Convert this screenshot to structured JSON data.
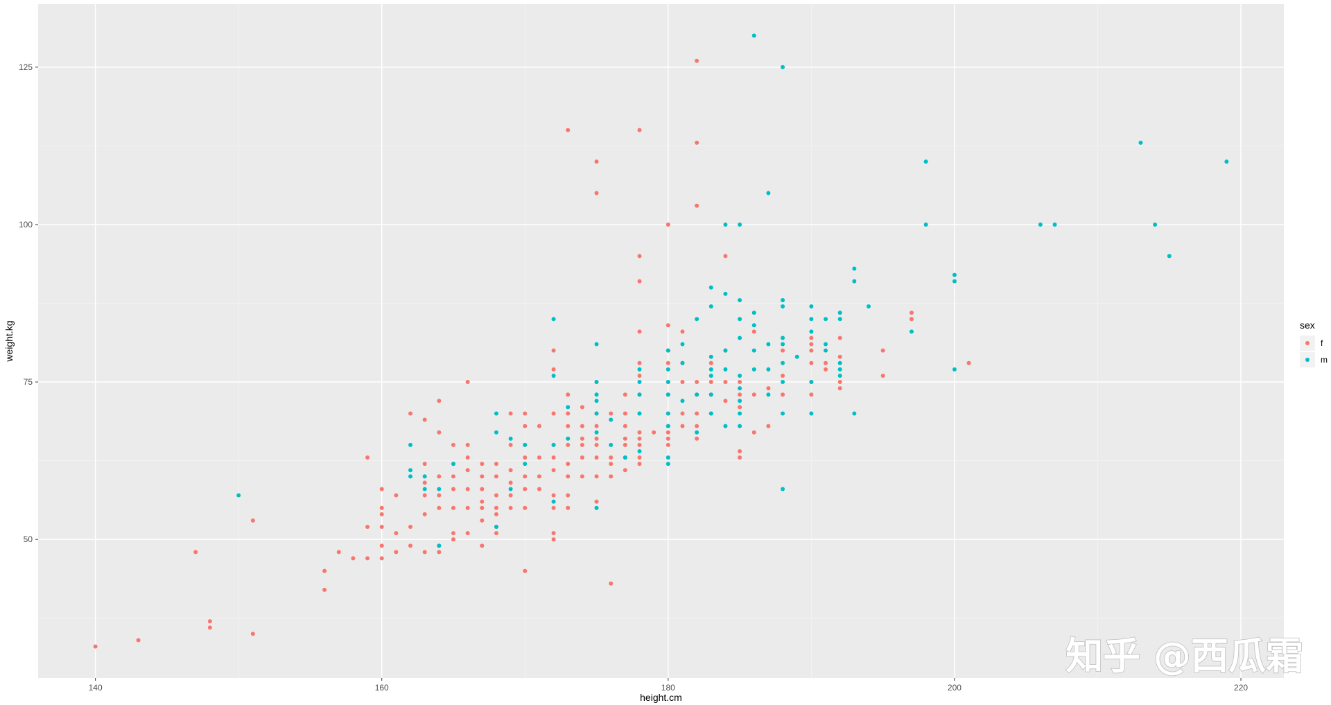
{
  "chart_data": {
    "type": "scatter",
    "xlabel": "height.cm",
    "ylabel": "weight.kg",
    "xlim": [
      136,
      223
    ],
    "ylim": [
      28,
      135
    ],
    "x_ticks": [
      140,
      160,
      180,
      200,
      220
    ],
    "y_ticks": [
      50,
      75,
      100,
      125
    ],
    "grid": true,
    "background_color": "#ebebeb",
    "legend": {
      "title": "sex",
      "placement": "right",
      "entries": [
        {
          "label": "f",
          "color": "#F8766D"
        },
        {
          "label": "m",
          "color": "#00BFC4"
        }
      ]
    },
    "series": [
      {
        "name": "f",
        "color": "#F8766D",
        "points": [
          [
            140,
            33
          ],
          [
            143,
            34
          ],
          [
            147,
            48
          ],
          [
            148,
            37
          ],
          [
            148,
            36
          ],
          [
            151,
            53
          ],
          [
            151,
            35
          ],
          [
            156,
            45
          ],
          [
            156,
            42
          ],
          [
            157,
            48
          ],
          [
            158,
            47
          ],
          [
            159,
            63
          ],
          [
            159,
            52
          ],
          [
            159,
            47
          ],
          [
            160,
            58
          ],
          [
            160,
            55
          ],
          [
            160,
            54
          ],
          [
            160,
            52
          ],
          [
            160,
            49
          ],
          [
            160,
            47
          ],
          [
            161,
            57
          ],
          [
            161,
            51
          ],
          [
            161,
            48
          ],
          [
            162,
            70
          ],
          [
            162,
            52
          ],
          [
            162,
            49
          ],
          [
            163,
            69
          ],
          [
            163,
            62
          ],
          [
            163,
            59
          ],
          [
            163,
            57
          ],
          [
            163,
            54
          ],
          [
            163,
            48
          ],
          [
            164,
            72
          ],
          [
            164,
            67
          ],
          [
            164,
            60
          ],
          [
            164,
            57
          ],
          [
            164,
            55
          ],
          [
            164,
            49
          ],
          [
            164,
            48
          ],
          [
            165,
            65
          ],
          [
            165,
            62
          ],
          [
            165,
            60
          ],
          [
            165,
            58
          ],
          [
            165,
            55
          ],
          [
            165,
            51
          ],
          [
            165,
            50
          ],
          [
            166,
            75
          ],
          [
            166,
            65
          ],
          [
            166,
            63
          ],
          [
            166,
            61
          ],
          [
            166,
            58
          ],
          [
            166,
            55
          ],
          [
            166,
            51
          ],
          [
            167,
            62
          ],
          [
            167,
            60
          ],
          [
            167,
            58
          ],
          [
            167,
            56
          ],
          [
            167,
            55
          ],
          [
            167,
            53
          ],
          [
            167,
            49
          ],
          [
            168,
            62
          ],
          [
            168,
            60
          ],
          [
            168,
            57
          ],
          [
            168,
            55
          ],
          [
            168,
            54
          ],
          [
            168,
            52
          ],
          [
            168,
            51
          ],
          [
            169,
            70
          ],
          [
            169,
            65
          ],
          [
            169,
            61
          ],
          [
            169,
            59
          ],
          [
            169,
            57
          ],
          [
            169,
            55
          ],
          [
            170,
            70
          ],
          [
            170,
            68
          ],
          [
            170,
            65
          ],
          [
            170,
            63
          ],
          [
            170,
            60
          ],
          [
            170,
            58
          ],
          [
            170,
            55
          ],
          [
            170,
            45
          ],
          [
            171,
            68
          ],
          [
            171,
            63
          ],
          [
            171,
            60
          ],
          [
            171,
            58
          ],
          [
            172,
            80
          ],
          [
            172,
            77
          ],
          [
            172,
            70
          ],
          [
            172,
            65
          ],
          [
            172,
            63
          ],
          [
            172,
            61
          ],
          [
            172,
            57
          ],
          [
            172,
            55
          ],
          [
            172,
            51
          ],
          [
            172,
            50
          ],
          [
            173,
            115
          ],
          [
            173,
            73
          ],
          [
            173,
            70
          ],
          [
            173,
            68
          ],
          [
            173,
            65
          ],
          [
            173,
            62
          ],
          [
            173,
            60
          ],
          [
            173,
            57
          ],
          [
            173,
            55
          ],
          [
            174,
            71
          ],
          [
            174,
            68
          ],
          [
            174,
            66
          ],
          [
            174,
            65
          ],
          [
            174,
            63
          ],
          [
            174,
            60
          ],
          [
            175,
            110
          ],
          [
            175,
            105
          ],
          [
            175,
            75
          ],
          [
            175,
            70
          ],
          [
            175,
            68
          ],
          [
            175,
            66
          ],
          [
            175,
            65
          ],
          [
            175,
            63
          ],
          [
            175,
            60
          ],
          [
            175,
            56
          ],
          [
            176,
            70
          ],
          [
            176,
            63
          ],
          [
            176,
            62
          ],
          [
            176,
            60
          ],
          [
            176,
            43
          ],
          [
            177,
            73
          ],
          [
            177,
            70
          ],
          [
            177,
            68
          ],
          [
            177,
            66
          ],
          [
            177,
            65
          ],
          [
            177,
            63
          ],
          [
            177,
            61
          ],
          [
            178,
            115
          ],
          [
            178,
            95
          ],
          [
            178,
            91
          ],
          [
            178,
            83
          ],
          [
            178,
            78
          ],
          [
            178,
            76
          ],
          [
            178,
            73
          ],
          [
            178,
            70
          ],
          [
            178,
            67
          ],
          [
            178,
            66
          ],
          [
            178,
            65
          ],
          [
            178,
            63
          ],
          [
            178,
            62
          ],
          [
            179,
            67
          ],
          [
            180,
            100
          ],
          [
            180,
            84
          ],
          [
            180,
            80
          ],
          [
            180,
            78
          ],
          [
            180,
            75
          ],
          [
            180,
            73
          ],
          [
            180,
            70
          ],
          [
            180,
            68
          ],
          [
            180,
            67
          ],
          [
            180,
            66
          ],
          [
            180,
            65
          ],
          [
            181,
            83
          ],
          [
            181,
            78
          ],
          [
            181,
            75
          ],
          [
            181,
            70
          ],
          [
            181,
            68
          ],
          [
            182,
            126
          ],
          [
            182,
            113
          ],
          [
            182,
            103
          ],
          [
            182,
            75
          ],
          [
            182,
            73
          ],
          [
            182,
            70
          ],
          [
            182,
            68
          ],
          [
            182,
            66
          ],
          [
            183,
            78
          ],
          [
            183,
            75
          ],
          [
            183,
            73
          ],
          [
            183,
            70
          ],
          [
            184,
            95
          ],
          [
            184,
            80
          ],
          [
            184,
            75
          ],
          [
            184,
            72
          ],
          [
            185,
            75
          ],
          [
            185,
            73
          ],
          [
            185,
            71
          ],
          [
            185,
            64
          ],
          [
            185,
            63
          ],
          [
            186,
            83
          ],
          [
            186,
            73
          ],
          [
            186,
            67
          ],
          [
            187,
            74
          ],
          [
            187,
            68
          ],
          [
            188,
            80
          ],
          [
            188,
            76
          ],
          [
            188,
            73
          ],
          [
            190,
            82
          ],
          [
            190,
            81
          ],
          [
            190,
            80
          ],
          [
            190,
            78
          ],
          [
            190,
            75
          ],
          [
            190,
            73
          ],
          [
            191,
            78
          ],
          [
            191,
            77
          ],
          [
            192,
            82
          ],
          [
            192,
            79
          ],
          [
            192,
            75
          ],
          [
            192,
            74
          ],
          [
            195,
            80
          ],
          [
            195,
            76
          ],
          [
            197,
            86
          ],
          [
            197,
            85
          ],
          [
            201,
            78
          ]
        ]
      },
      {
        "name": "m",
        "color": "#00BFC4",
        "points": [
          [
            150,
            57
          ],
          [
            162,
            65
          ],
          [
            162,
            61
          ],
          [
            162,
            60
          ],
          [
            163,
            60
          ],
          [
            163,
            58
          ],
          [
            164,
            58
          ],
          [
            164,
            49
          ],
          [
            165,
            62
          ],
          [
            168,
            70
          ],
          [
            168,
            67
          ],
          [
            168,
            52
          ],
          [
            169,
            66
          ],
          [
            169,
            58
          ],
          [
            170,
            65
          ],
          [
            170,
            62
          ],
          [
            172,
            85
          ],
          [
            172,
            76
          ],
          [
            172,
            65
          ],
          [
            172,
            56
          ],
          [
            173,
            71
          ],
          [
            173,
            66
          ],
          [
            175,
            81
          ],
          [
            175,
            75
          ],
          [
            175,
            73
          ],
          [
            175,
            72
          ],
          [
            175,
            70
          ],
          [
            175,
            67
          ],
          [
            175,
            55
          ],
          [
            176,
            69
          ],
          [
            176,
            65
          ],
          [
            177,
            63
          ],
          [
            178,
            77
          ],
          [
            178,
            75
          ],
          [
            178,
            73
          ],
          [
            178,
            70
          ],
          [
            178,
            64
          ],
          [
            180,
            80
          ],
          [
            180,
            77
          ],
          [
            180,
            75
          ],
          [
            180,
            73
          ],
          [
            180,
            70
          ],
          [
            180,
            68
          ],
          [
            180,
            63
          ],
          [
            180,
            62
          ],
          [
            181,
            81
          ],
          [
            181,
            78
          ],
          [
            181,
            72
          ],
          [
            182,
            85
          ],
          [
            182,
            73
          ],
          [
            182,
            67
          ],
          [
            183,
            90
          ],
          [
            183,
            87
          ],
          [
            183,
            79
          ],
          [
            183,
            77
          ],
          [
            183,
            76
          ],
          [
            183,
            73
          ],
          [
            183,
            70
          ],
          [
            184,
            100
          ],
          [
            184,
            89
          ],
          [
            184,
            80
          ],
          [
            184,
            77
          ],
          [
            184,
            68
          ],
          [
            185,
            100
          ],
          [
            185,
            88
          ],
          [
            185,
            85
          ],
          [
            185,
            82
          ],
          [
            185,
            76
          ],
          [
            185,
            74
          ],
          [
            185,
            72
          ],
          [
            185,
            70
          ],
          [
            185,
            68
          ],
          [
            186,
            130
          ],
          [
            186,
            86
          ],
          [
            186,
            84
          ],
          [
            186,
            80
          ],
          [
            186,
            77
          ],
          [
            187,
            105
          ],
          [
            187,
            81
          ],
          [
            187,
            77
          ],
          [
            187,
            73
          ],
          [
            188,
            125
          ],
          [
            188,
            88
          ],
          [
            188,
            87
          ],
          [
            188,
            82
          ],
          [
            188,
            81
          ],
          [
            188,
            78
          ],
          [
            188,
            75
          ],
          [
            188,
            70
          ],
          [
            188,
            58
          ],
          [
            189,
            79
          ],
          [
            190,
            87
          ],
          [
            190,
            85
          ],
          [
            190,
            83
          ],
          [
            190,
            75
          ],
          [
            190,
            70
          ],
          [
            191,
            85
          ],
          [
            191,
            81
          ],
          [
            191,
            80
          ],
          [
            192,
            86
          ],
          [
            192,
            85
          ],
          [
            192,
            78
          ],
          [
            192,
            77
          ],
          [
            192,
            76
          ],
          [
            193,
            93
          ],
          [
            193,
            91
          ],
          [
            193,
            70
          ],
          [
            194,
            87
          ],
          [
            197,
            83
          ],
          [
            198,
            110
          ],
          [
            198,
            100
          ],
          [
            200,
            92
          ],
          [
            200,
            91
          ],
          [
            200,
            77
          ],
          [
            206,
            100
          ],
          [
            207,
            100
          ],
          [
            213,
            113
          ],
          [
            214,
            100
          ],
          [
            215,
            95
          ],
          [
            219,
            110
          ]
        ]
      }
    ]
  },
  "watermark": {
    "text": "知乎 @西瓜霜"
  }
}
